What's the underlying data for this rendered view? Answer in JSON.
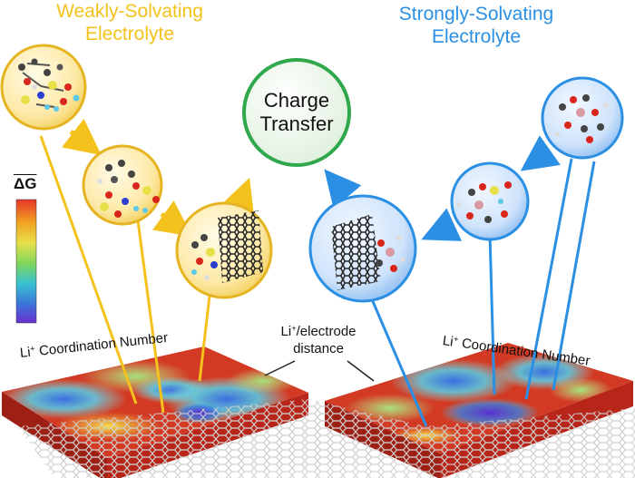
{
  "weak": {
    "title_line1": "Weakly-Solvating",
    "title_line2": "Electrolyte"
  },
  "strong": {
    "title_line1": "Strongly-Solvating",
    "title_line2": "Electrolyte"
  },
  "center": {
    "line1": "Charge",
    "line2": "Transfer"
  },
  "legend": {
    "symbol": "ΔG",
    "colors": [
      "#e8352a",
      "#f0a020",
      "#e8e04a",
      "#7fd65c",
      "#38c2d0",
      "#3a78d8",
      "#6a2fd0"
    ]
  },
  "labels": {
    "coord_prefix": "Li",
    "coord_sup": "+",
    "coord_suffix": " Coordination Number",
    "dist_line1_prefix": "Li",
    "dist_line1_sup": "+",
    "dist_line1_suffix": "/electrode",
    "dist_line2": "distance"
  },
  "colors": {
    "weak_accent": "#f4c21c",
    "strong_accent": "#2b8fe3",
    "transfer_ring": "#2ea84a",
    "surface_base": "#c62a1c"
  }
}
